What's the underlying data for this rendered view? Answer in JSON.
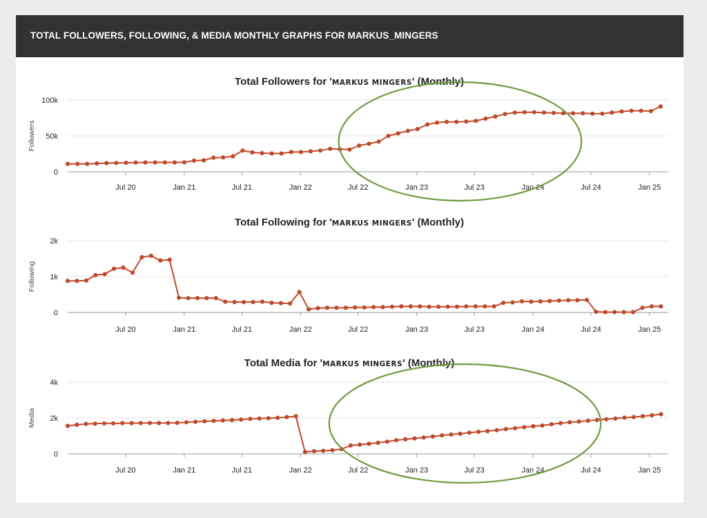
{
  "header": {
    "title": "TOTAL FOLLOWERS, FOLLOWING, & MEDIA MONTHLY GRAPHS FOR MARKUS_MINGERS"
  },
  "colors": {
    "line": "#c0492a",
    "highlight": "#6e9a3d",
    "header_bg": "#323232",
    "grid": "#e6e6e6"
  },
  "chart_data": [
    {
      "type": "line",
      "title_prefix": "Total Followers for '",
      "title_handle": "MARKUS MINGERS",
      "title_suffix": "' (Monthly)",
      "ylabel": "Followers",
      "ylim": [
        0,
        100000
      ],
      "yticks": [
        0,
        50000,
        100000
      ],
      "ytick_labels": [
        "0",
        "50k",
        "100k"
      ],
      "xticks": [
        "2020-07-01",
        "2021-01-01",
        "2021-07-01",
        "2022-01-01",
        "2022-07-01",
        "2023-01-01",
        "2023-07-01",
        "2024-01-01",
        "2024-07-01",
        "2025-01-01"
      ],
      "xtick_labels": [
        "Jul 20",
        "Jan 21",
        "Jul 21",
        "Jan 22",
        "Jul 22",
        "Jan 23",
        "Jul 23",
        "Jan 24",
        "Jul 24",
        "Jan 25"
      ],
      "x_start": "2020-01-01",
      "highlight": {
        "shape": "ellipse",
        "from": "2022-05-01",
        "to": "2024-06-01"
      },
      "series": [
        {
          "values": [
            11000,
            11000,
            11000,
            11500,
            12000,
            12200,
            12500,
            12800,
            13000,
            13000,
            13000,
            13000,
            13200,
            15500,
            16000,
            19500,
            20000,
            21500,
            29500,
            27000,
            26000,
            25500,
            25500,
            27500,
            27500,
            28500,
            29500,
            32000,
            31500,
            31000,
            36500,
            39000,
            42000,
            50000,
            53500,
            57000,
            59500,
            66000,
            68500,
            69500,
            69500,
            70000,
            71000,
            74000,
            77000,
            80500,
            82500,
            83000,
            83000,
            82500,
            82000,
            81500,
            81500,
            81500,
            81000,
            81000,
            82500,
            84000,
            85000,
            85000,
            84500,
            91000
          ]
        }
      ]
    },
    {
      "type": "line",
      "title_prefix": "Total Following for '",
      "title_handle": "MARKUS MINGERS",
      "title_suffix": "' (Monthly)",
      "ylabel": "Following",
      "ylim": [
        0,
        2000
      ],
      "yticks": [
        0,
        1000,
        2000
      ],
      "ytick_labels": [
        "0",
        "1k",
        "2k"
      ],
      "xticks": [
        "2020-07-01",
        "2021-01-01",
        "2021-07-01",
        "2022-01-01",
        "2022-07-01",
        "2023-01-01",
        "2023-07-01",
        "2024-01-01",
        "2024-07-01",
        "2025-01-01"
      ],
      "xtick_labels": [
        "Jul 20",
        "Jan 21",
        "Jul 21",
        "Jan 22",
        "Jul 22",
        "Jan 23",
        "Jul 23",
        "Jan 24",
        "Jul 24",
        "Jan 25"
      ],
      "x_start": "2020-01-01",
      "series": [
        {
          "values": [
            880,
            880,
            890,
            1040,
            1070,
            1220,
            1250,
            1110,
            1540,
            1580,
            1450,
            1470,
            410,
            400,
            400,
            400,
            400,
            300,
            290,
            290,
            290,
            300,
            270,
            260,
            250,
            570,
            90,
            120,
            130,
            130,
            130,
            140,
            140,
            150,
            150,
            160,
            170,
            170,
            170,
            160,
            160,
            160,
            160,
            170,
            170,
            170,
            170,
            270,
            280,
            310,
            300,
            310,
            320,
            330,
            340,
            340,
            350,
            20,
            10,
            10,
            10,
            10,
            130,
            170,
            170
          ]
        }
      ]
    },
    {
      "type": "line",
      "title_prefix": "Total Media for '",
      "title_handle": "MARKUS MINGERS",
      "title_suffix": "' (Monthly)",
      "ylabel": "Media",
      "ylim": [
        0,
        4000
      ],
      "yticks": [
        0,
        2000,
        4000
      ],
      "ytick_labels": [
        "0",
        "2k",
        "4k"
      ],
      "xticks": [
        "2020-07-01",
        "2021-01-01",
        "2021-07-01",
        "2022-01-01",
        "2022-07-01",
        "2023-01-01",
        "2023-07-01",
        "2024-01-01",
        "2024-07-01",
        "2025-01-01"
      ],
      "xtick_labels": [
        "Jul 20",
        "Jan 21",
        "Jul 21",
        "Jan 22",
        "Jul 22",
        "Jan 23",
        "Jul 23",
        "Jan 24",
        "Jul 24",
        "Jan 25"
      ],
      "x_start": "2020-01-01",
      "highlight": {
        "shape": "ellipse",
        "from": "2022-04-01",
        "to": "2024-08-01"
      },
      "series": [
        {
          "values": [
            1560,
            1620,
            1670,
            1680,
            1700,
            1700,
            1710,
            1710,
            1720,
            1720,
            1720,
            1720,
            1730,
            1760,
            1790,
            1820,
            1840,
            1860,
            1880,
            1910,
            1950,
            1970,
            1990,
            2010,
            2050,
            2100,
            100,
            150,
            170,
            200,
            260,
            470,
            510,
            560,
            620,
            680,
            760,
            810,
            860,
            910,
            970,
            1030,
            1080,
            1120,
            1180,
            1230,
            1270,
            1320,
            1380,
            1430,
            1490,
            1540,
            1580,
            1650,
            1710,
            1760,
            1800,
            1850,
            1890,
            1930,
            1970,
            2020,
            2050,
            2100,
            2150,
            2210
          ]
        }
      ]
    }
  ]
}
